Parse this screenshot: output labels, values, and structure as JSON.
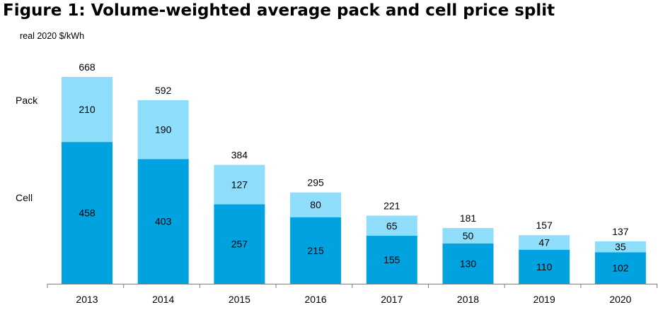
{
  "chart_data": {
    "type": "bar",
    "stacked": true,
    "title": "Figure 1: Volume-weighted average pack and cell price split",
    "ylabel": "real 2020 $/kWh",
    "categories": [
      "2013",
      "2014",
      "2015",
      "2016",
      "2017",
      "2018",
      "2019",
      "2020"
    ],
    "series": [
      {
        "name": "Cell",
        "values": [
          458,
          403,
          257,
          215,
          155,
          130,
          110,
          102
        ],
        "color": "#00A3E0"
      },
      {
        "name": "Pack",
        "values": [
          210,
          190,
          127,
          80,
          65,
          50,
          47,
          35
        ],
        "color": "#8DDDFB"
      }
    ],
    "totals": [
      668,
      592,
      384,
      295,
      221,
      181,
      157,
      137
    ],
    "ylim": [
      0,
      700
    ],
    "grid": false,
    "legend_position": "left"
  }
}
